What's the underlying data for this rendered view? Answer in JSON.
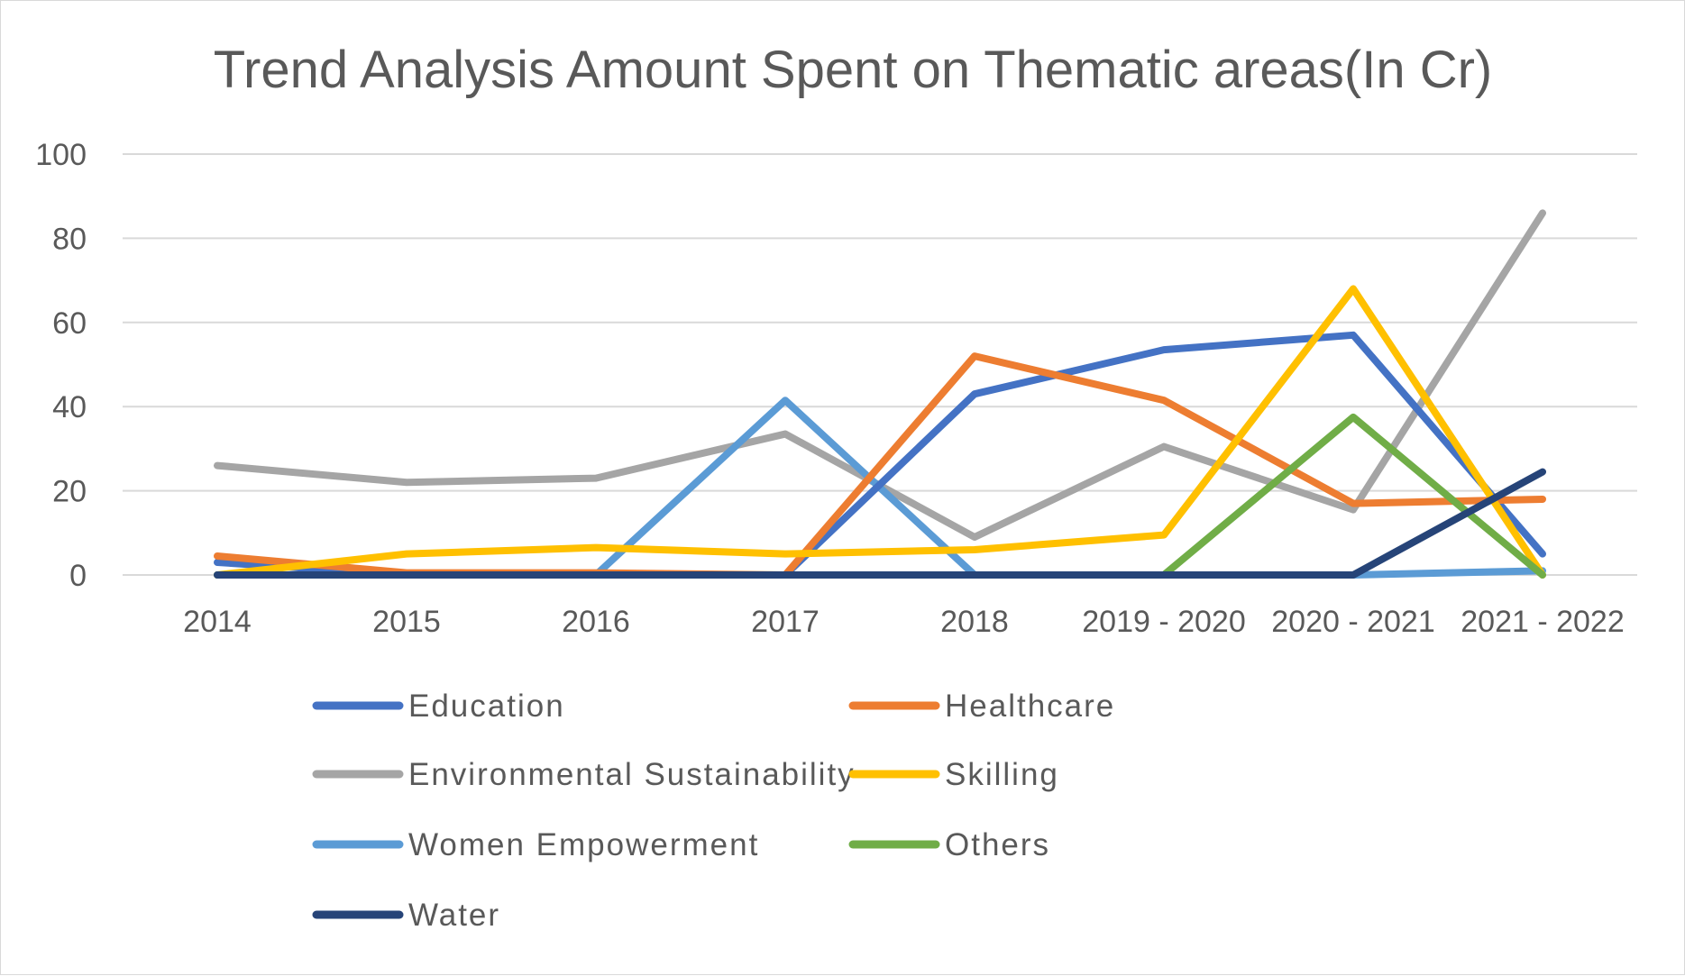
{
  "chart_data": {
    "type": "line",
    "title": "Trend Analysis Amount Spent on Thematic areas(In Cr)",
    "xlabel": "",
    "ylabel": "",
    "categories": [
      "2014",
      "2015",
      "2016",
      "2017",
      "2018",
      "2019 - 2020",
      "2020 - 2021",
      "2021 - 2022"
    ],
    "ylim": [
      0,
      100
    ],
    "yticks": [
      "0",
      "20",
      "40",
      "60",
      "80",
      "100"
    ],
    "grid": true,
    "legend_position": "bottom",
    "series": [
      {
        "name": "Education",
        "color": "#4472C4",
        "values": [
          3,
          0,
          0,
          0,
          43,
          53.5,
          57,
          5
        ]
      },
      {
        "name": "Healthcare",
        "color": "#ED7D31",
        "values": [
          4.5,
          0.5,
          0.5,
          0,
          52,
          41.5,
          17,
          18
        ]
      },
      {
        "name": "Environmental Sustainability",
        "color": "#A5A5A5",
        "values": [
          26,
          22,
          23,
          33.5,
          9,
          30.5,
          15.5,
          86
        ]
      },
      {
        "name": "Skilling",
        "color": "#FFC000",
        "values": [
          0,
          5,
          6.5,
          5,
          6,
          9.5,
          68,
          0
        ]
      },
      {
        "name": "Women Empowerment",
        "color": "#5B9BD5",
        "values": [
          0,
          0,
          0,
          41.5,
          0,
          0,
          0,
          1
        ]
      },
      {
        "name": "Others",
        "color": "#70AD47",
        "values": [
          0,
          0,
          0,
          0,
          0,
          0,
          37.5,
          0
        ]
      },
      {
        "name": "Water",
        "color": "#264478",
        "values": [
          0,
          0,
          0,
          0,
          0,
          0,
          0,
          24.5
        ]
      }
    ]
  }
}
